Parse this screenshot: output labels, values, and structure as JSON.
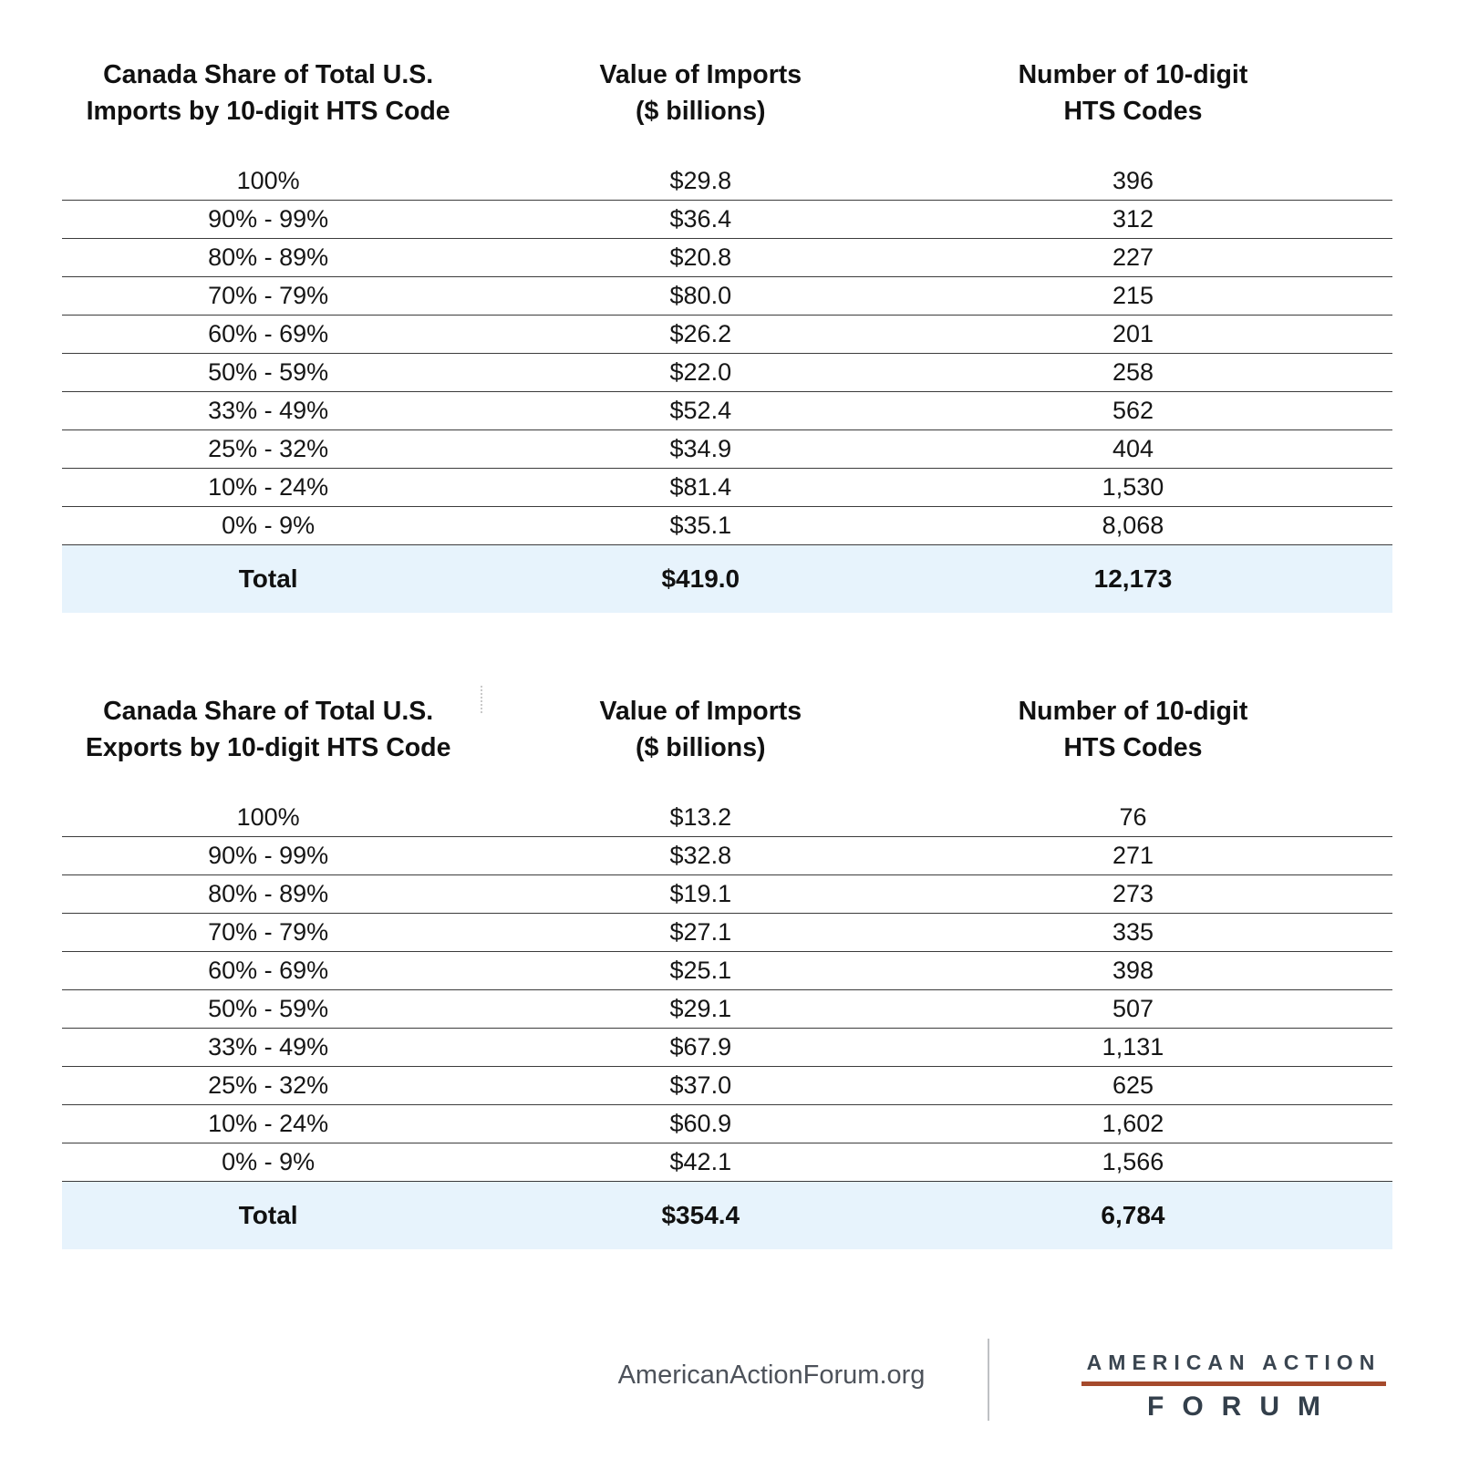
{
  "chart_data": [
    {
      "type": "table",
      "title": "Canada Share of Total U.S. Imports by 10-digit HTS Code",
      "header": {
        "col1_line1": "Canada Share of Total U.S.",
        "col1_line2": "Imports by 10-digit HTS Code",
        "col2_line1": "Value of Imports",
        "col2_line2": "($ billions)",
        "col3_line1": "Number of 10-digit",
        "col3_line2": "HTS Codes"
      },
      "rows": [
        [
          "100%",
          "$29.8",
          "396"
        ],
        [
          "90% - 99%",
          "$36.4",
          "312"
        ],
        [
          "80% - 89%",
          "$20.8",
          "227"
        ],
        [
          "70% - 79%",
          "$80.0",
          "215"
        ],
        [
          "60% - 69%",
          "$26.2",
          "201"
        ],
        [
          "50% - 59%",
          "$22.0",
          "258"
        ],
        [
          "33% - 49%",
          "$52.4",
          "562"
        ],
        [
          "25% - 32%",
          "$34.9",
          "404"
        ],
        [
          "10% - 24%",
          "$81.4",
          "1,530"
        ],
        [
          "0% - 9%",
          "$35.1",
          "8,068"
        ]
      ],
      "total_row": [
        "Total",
        "$419.0",
        "12,173"
      ]
    },
    {
      "type": "table",
      "title": "Canada Share of Total U.S. Exports by 10-digit HTS Code",
      "header": {
        "col1_line1": "Canada Share of Total U.S.",
        "col1_line2": "Exports by 10-digit HTS Code",
        "col2_line1": "Value of Imports",
        "col2_line2": "($ billions)",
        "col3_line1": "Number of 10-digit",
        "col3_line2": "HTS Codes"
      },
      "rows": [
        [
          "100%",
          "$13.2",
          "76"
        ],
        [
          "90% - 99%",
          "$32.8",
          "271"
        ],
        [
          "80% - 89%",
          "$19.1",
          "273"
        ],
        [
          "70% - 79%",
          "$27.1",
          "335"
        ],
        [
          "60% - 69%",
          "$25.1",
          "398"
        ],
        [
          "50% - 59%",
          "$29.1",
          "507"
        ],
        [
          "33% - 49%",
          "$67.9",
          "1,131"
        ],
        [
          "25% - 32%",
          "$37.0",
          "625"
        ],
        [
          "10% - 24%",
          "$60.9",
          "1,602"
        ],
        [
          "0% - 9%",
          "$42.1",
          "1,566"
        ]
      ],
      "total_row": [
        "Total",
        "$354.4",
        "6,784"
      ]
    }
  ],
  "footer": {
    "site": "AmericanActionForum.org",
    "logo_line1": "AMERICAN ACTION",
    "logo_line2": "FORUM"
  },
  "colors": {
    "total_row_background": "#e7f3fc",
    "row_separator": "#3c3c3c",
    "logo_text": "#3a4550",
    "logo_rule": "#a54a2c",
    "footer_text": "#4d525a"
  }
}
